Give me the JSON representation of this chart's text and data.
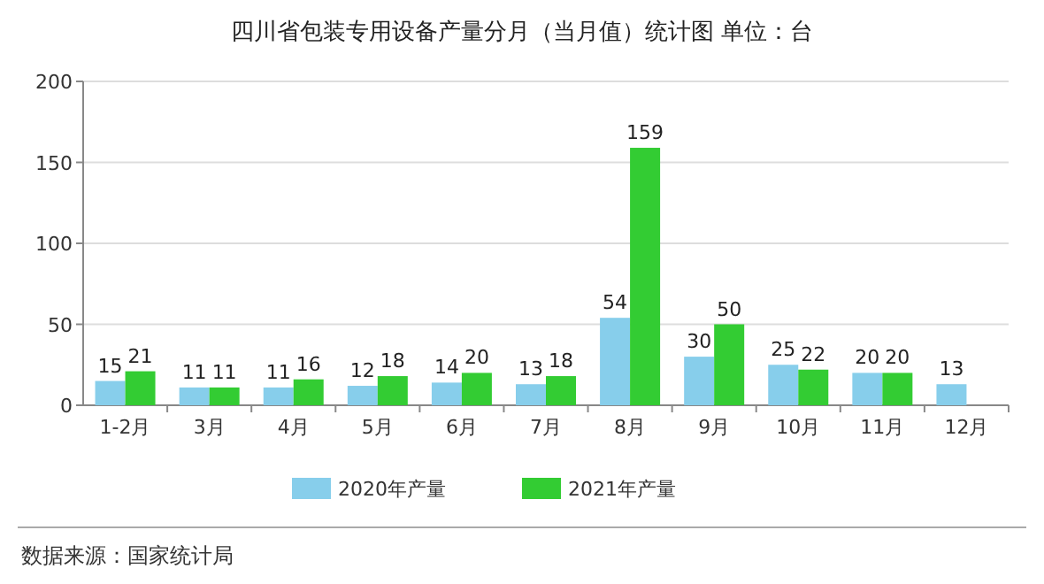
{
  "chart_data": {
    "type": "bar",
    "title": "四川省包装专用设备产量分月（当月值）统计图 单位：台",
    "categories": [
      "1-2月",
      "3月",
      "4月",
      "5月",
      "6月",
      "7月",
      "8月",
      "9月",
      "10月",
      "11月",
      "12月"
    ],
    "series": [
      {
        "name": "2020年产量",
        "color": "#87ceeb",
        "values": [
          15,
          11,
          11,
          12,
          14,
          13,
          54,
          30,
          25,
          20,
          13
        ]
      },
      {
        "name": "2021年产量",
        "color": "#33cc33",
        "values": [
          21,
          11,
          16,
          18,
          20,
          18,
          159,
          50,
          22,
          20,
          null
        ]
      }
    ],
    "ylim": [
      0,
      200
    ],
    "yticks": [
      0,
      50,
      100,
      150,
      200
    ],
    "grid": "y",
    "legend": "bottom",
    "data_labels": true,
    "annotations": [
      "数据来源：国家统计局"
    ]
  }
}
